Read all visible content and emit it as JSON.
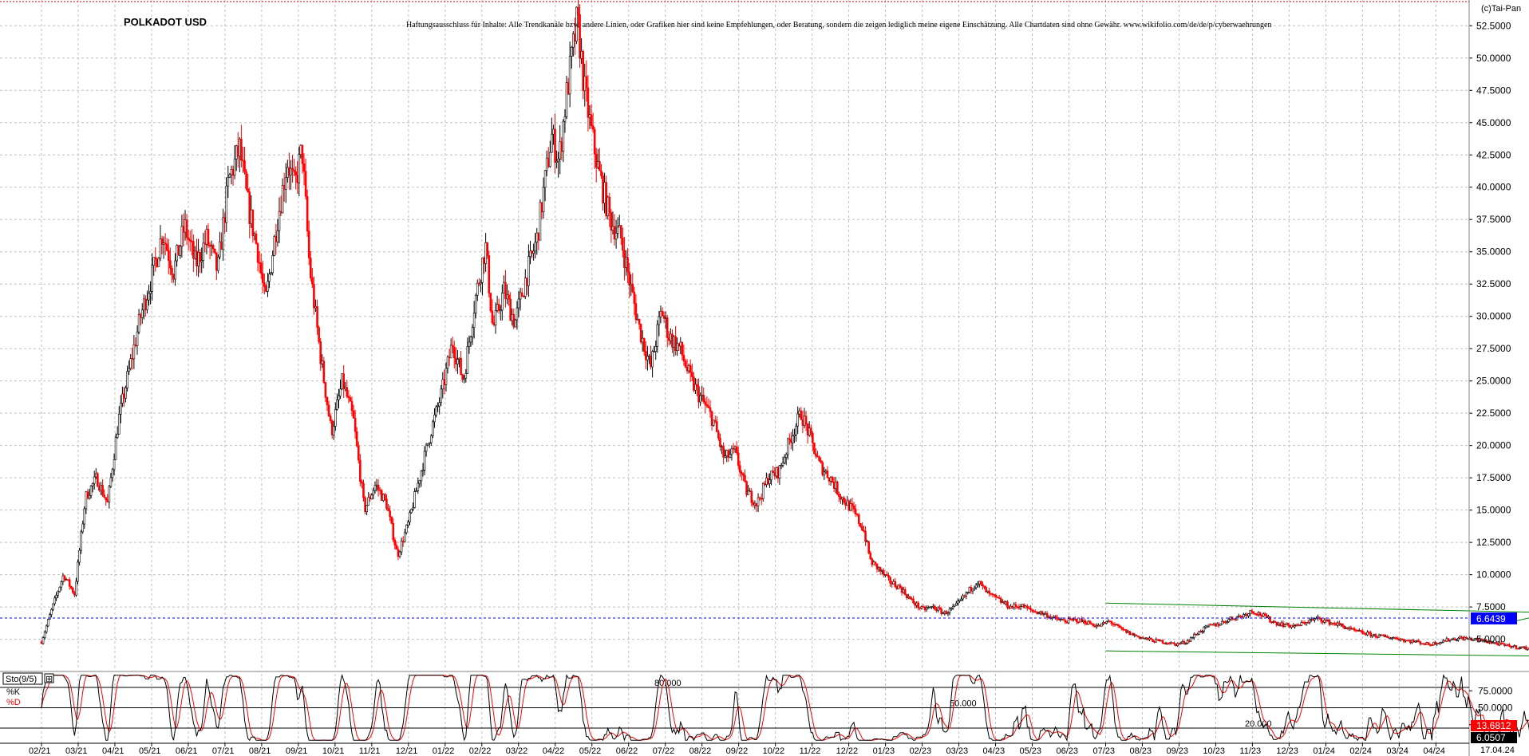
{
  "header": {
    "title": "POLKADOT USD",
    "disclaimer": "Haftungsausschluss für Inhalte: Alle Trendkanäle bzw. andere Linien, oder Grafiken hier sind keine Empfehlungen, oder Beratung, sondern die zeigen lediglich meine eigene Einschätzung. Alle Chartdaten sind ohne Gewähr. www.wikifolio.com/de/de/p/cyberwaehrungen",
    "copyright": "(c)Tai-Pan"
  },
  "colors": {
    "up": "#000000",
    "down": "#ff0000",
    "grid": "#c0c0c0",
    "trend": "#008000",
    "price_line": "#0000ff",
    "price_badge": "#0000ff",
    "stoch_k": "#000000",
    "stoch_d": "#ff0000",
    "stoch_k_badge": "#ff0000",
    "stoch_d_badge": "#000000"
  },
  "chart_data": [
    {
      "type": "candlestick",
      "title": "POLKADOT USD",
      "y_ticks": [
        "52.5000",
        "50.0000",
        "47.5000",
        "45.0000",
        "42.5000",
        "40.0000",
        "37.5000",
        "35.0000",
        "32.5000",
        "30.0000",
        "27.5000",
        "25.0000",
        "22.5000",
        "20.0000",
        "17.5000",
        "15.0000",
        "12.5000",
        "10.0000",
        "7.5000",
        "5.0000"
      ],
      "ylim": [
        3.0,
        54.0
      ],
      "x_ticks": [
        "02/21",
        "03/21",
        "04/21",
        "05/21",
        "06/21",
        "07/21",
        "08/21",
        "09/21",
        "10/21",
        "11/21",
        "12/21",
        "01/22",
        "02/22",
        "03/22",
        "04/22",
        "05/22",
        "06/22",
        "07/22",
        "08/22",
        "09/22",
        "10/22",
        "11/22",
        "12/22",
        "01/23",
        "02/23",
        "03/23",
        "04/23",
        "05/23",
        "06/23",
        "07/23",
        "08/23",
        "09/23",
        "10/23",
        "11/23",
        "12/23",
        "01/24",
        "02/24",
        "03/24",
        "04/24"
      ],
      "last_date": "17.04.24",
      "last_price": 6.6439,
      "last_price_label": "6.6439",
      "grid": true,
      "price_path": [
        [
          0,
          4.8
        ],
        [
          0.3,
          7.5
        ],
        [
          0.6,
          10.0
        ],
        [
          0.9,
          8.5
        ],
        [
          1.2,
          16.0
        ],
        [
          1.5,
          17.5
        ],
        [
          1.8,
          15.5
        ],
        [
          2.1,
          22.0
        ],
        [
          2.4,
          26.0
        ],
        [
          2.7,
          30.0
        ],
        [
          3.0,
          33.0
        ],
        [
          3.3,
          36.5
        ],
        [
          3.6,
          33.5
        ],
        [
          3.9,
          37.0
        ],
        [
          4.2,
          34.0
        ],
        [
          4.5,
          36.0
        ],
        [
          4.8,
          33.5
        ],
        [
          5.1,
          40.5
        ],
        [
          5.4,
          43.0
        ],
        [
          5.6,
          39.0
        ],
        [
          5.9,
          35.0
        ],
        [
          6.1,
          31.0
        ],
        [
          6.4,
          37.0
        ],
        [
          6.7,
          42.0
        ],
        [
          6.9,
          40.0
        ],
        [
          7.1,
          43.0
        ],
        [
          7.3,
          34.0
        ],
        [
          7.6,
          27.0
        ],
        [
          7.9,
          21.0
        ],
        [
          8.2,
          25.0
        ],
        [
          8.5,
          22.0
        ],
        [
          8.8,
          15.0
        ],
        [
          9.1,
          17.0
        ],
        [
          9.4,
          15.5
        ],
        [
          9.7,
          11.5
        ],
        [
          10.0,
          14.0
        ],
        [
          10.3,
          17.5
        ],
        [
          10.6,
          21.0
        ],
        [
          10.9,
          24.0
        ],
        [
          11.2,
          28.0
        ],
        [
          11.5,
          25.0
        ],
        [
          11.8,
          31.0
        ],
        [
          12.1,
          35.5
        ],
        [
          12.3,
          29.0
        ],
        [
          12.6,
          32.0
        ],
        [
          12.9,
          29.5
        ],
        [
          13.2,
          33.0
        ],
        [
          13.5,
          36.0
        ],
        [
          13.7,
          40.0
        ],
        [
          13.9,
          44.0
        ],
        [
          14.1,
          42.0
        ],
        [
          14.3,
          47.0
        ],
        [
          14.6,
          53.0
        ],
        [
          14.8,
          47.5
        ],
        [
          15.0,
          44.0
        ],
        [
          15.2,
          41.0
        ],
        [
          15.5,
          37.5
        ],
        [
          15.8,
          36.0
        ],
        [
          16.0,
          33.0
        ],
        [
          16.3,
          29.0
        ],
        [
          16.6,
          26.0
        ],
        [
          16.9,
          30.5
        ],
        [
          17.1,
          28.5
        ],
        [
          17.4,
          27.5
        ],
        [
          17.7,
          25.0
        ],
        [
          18.0,
          23.5
        ],
        [
          18.3,
          22.0
        ],
        [
          18.6,
          19.0
        ],
        [
          18.9,
          19.5
        ],
        [
          19.2,
          16.5
        ],
        [
          19.5,
          15.5
        ],
        [
          19.8,
          17.5
        ],
        [
          20.1,
          18.0
        ],
        [
          20.4,
          20.5
        ],
        [
          20.7,
          22.5
        ],
        [
          20.9,
          21.0
        ],
        [
          21.2,
          18.5
        ],
        [
          21.5,
          17.5
        ],
        [
          21.8,
          16.0
        ],
        [
          22.1,
          15.0
        ],
        [
          22.4,
          13.5
        ],
        [
          22.6,
          11.0
        ],
        [
          22.8,
          10.5
        ],
        [
          23.1,
          9.5
        ],
        [
          23.4,
          9.0
        ],
        [
          23.7,
          8.0
        ],
        [
          24.0,
          7.3
        ],
        [
          24.3,
          7.5
        ],
        [
          24.6,
          7.0
        ],
        [
          24.9,
          7.5
        ],
        [
          25.2,
          8.5
        ],
        [
          25.5,
          9.5
        ],
        [
          25.8,
          8.5
        ],
        [
          26.1,
          8.0
        ],
        [
          26.4,
          7.5
        ],
        [
          26.7,
          7.6
        ],
        [
          27.0,
          7.2
        ],
        [
          27.3,
          7.0
        ],
        [
          27.6,
          6.6
        ],
        [
          27.9,
          6.4
        ],
        [
          28.2,
          6.5
        ],
        [
          28.5,
          6.3
        ],
        [
          28.8,
          6.0
        ],
        [
          29.1,
          6.4
        ],
        [
          29.4,
          5.8
        ],
        [
          29.7,
          5.4
        ],
        [
          30.0,
          5.1
        ],
        [
          30.3,
          4.9
        ],
        [
          30.6,
          4.8
        ],
        [
          30.9,
          4.6
        ],
        [
          31.2,
          4.8
        ],
        [
          31.5,
          5.5
        ],
        [
          31.8,
          6.0
        ],
        [
          32.1,
          6.2
        ],
        [
          32.4,
          6.6
        ],
        [
          32.7,
          6.8
        ],
        [
          33.0,
          7.2
        ],
        [
          33.3,
          6.8
        ],
        [
          33.6,
          6.3
        ],
        [
          33.9,
          6.1
        ],
        [
          34.2,
          6.0
        ],
        [
          34.5,
          6.4
        ],
        [
          34.8,
          6.6
        ],
        [
          35.1,
          6.3
        ],
        [
          35.4,
          6.1
        ],
        [
          35.7,
          5.7
        ],
        [
          36.0,
          5.5
        ],
        [
          36.3,
          5.3
        ],
        [
          36.6,
          5.2
        ],
        [
          36.9,
          5.1
        ],
        [
          37.2,
          4.9
        ],
        [
          37.5,
          4.8
        ],
        [
          37.8,
          4.6
        ],
        [
          38.1,
          4.8
        ],
        [
          38.4,
          5.0
        ],
        [
          38.7,
          5.1
        ],
        [
          39.0,
          5.0
        ],
        [
          39.3,
          4.9
        ],
        [
          39.6,
          4.7
        ],
        [
          39.9,
          4.5
        ],
        [
          40.2,
          4.4
        ],
        [
          40.5,
          4.3
        ],
        [
          40.8,
          4.1
        ],
        [
          41.1,
          4.0
        ],
        [
          41.4,
          3.9
        ],
        [
          41.7,
          3.9
        ],
        [
          42.0,
          3.8
        ],
        [
          42.3,
          3.9
        ],
        [
          42.6,
          4.1
        ],
        [
          42.9,
          4.4
        ],
        [
          43.2,
          4.9
        ],
        [
          43.5,
          5.2
        ],
        [
          43.8,
          5.4
        ],
        [
          44.1,
          5.2
        ],
        [
          44.4,
          5.6
        ],
        [
          44.7,
          6.5
        ],
        [
          45.0,
          7.5
        ],
        [
          45.3,
          8.5
        ],
        [
          45.6,
          8.0
        ],
        [
          45.9,
          7.3
        ],
        [
          46.2,
          6.7
        ],
        [
          46.5,
          6.5
        ],
        [
          46.8,
          6.8
        ],
        [
          47.1,
          7.1
        ],
        [
          47.4,
          7.3
        ],
        [
          47.7,
          7.6
        ],
        [
          48.0,
          7.9
        ],
        [
          48.3,
          8.8
        ],
        [
          48.6,
          10.5
        ],
        [
          48.9,
          11.3
        ],
        [
          49.1,
          10.0
        ],
        [
          49.4,
          9.3
        ],
        [
          49.7,
          8.9
        ],
        [
          49.95,
          8.5
        ],
        [
          50.1,
          6.6439
        ]
      ]
    },
    {
      "type": "line",
      "indicator": "Sto(9/5)",
      "series": [
        {
          "name": "%K"
        },
        {
          "name": "%D"
        }
      ],
      "levels": [
        {
          "value": 80,
          "label": "80.000"
        },
        {
          "value": 50,
          "label": "50.000"
        },
        {
          "value": 20,
          "label": "20.000"
        }
      ],
      "y_ticks": [
        "75.0000",
        "50.0000",
        "25.0000"
      ],
      "ylim": [
        0,
        100
      ],
      "last_k_label": "13.6812",
      "last_d_label": "6.0507"
    }
  ],
  "trendlines": [
    {
      "name": "falling-upper",
      "points": [
        [
          29.0,
          7.8
        ],
        [
          43.8,
          6.9
        ]
      ]
    },
    {
      "name": "falling-lower",
      "points": [
        [
          29.0,
          4.1
        ],
        [
          43.8,
          3.6
        ]
      ]
    },
    {
      "name": "rising-upper",
      "points": [
        [
          40.0,
          6.3
        ],
        [
          48.4,
          11.8
        ]
      ]
    },
    {
      "name": "rising-lower",
      "points": [
        [
          41.9,
          3.8
        ],
        [
          48.0,
          7.8
        ]
      ]
    }
  ]
}
